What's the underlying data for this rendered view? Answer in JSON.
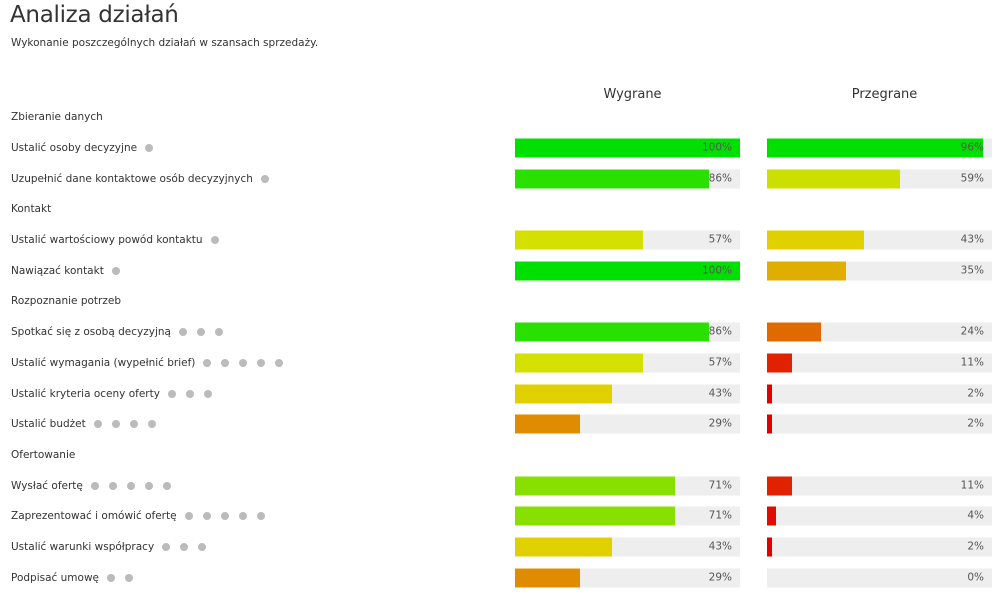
{
  "title": "Analiza działań",
  "subtitle": "Wykonanie poszczególnych działań w szansach sprzedaży.",
  "columns": {
    "won": "Wygrane",
    "lost": "Przegrane"
  },
  "rows": [
    {
      "type": "section",
      "label": "Zbieranie danych"
    },
    {
      "type": "item",
      "label": "Ustalić osoby decyzyjne",
      "dots": 1,
      "won": {
        "value": 100,
        "text": "100%",
        "color": "#00e000"
      },
      "lost": {
        "value": 96,
        "text": "96%",
        "color": "#00e000"
      }
    },
    {
      "type": "item",
      "label": "Uzupełnić dane kontaktowe osób decyzyjnych",
      "dots": 1,
      "won": {
        "value": 86,
        "text": "86%",
        "color": "#2ae000"
      },
      "lost": {
        "value": 59,
        "text": "59%",
        "color": "#cce000"
      }
    },
    {
      "type": "section",
      "label": "Kontakt"
    },
    {
      "type": "item",
      "label": "Ustalić wartościowy powód kontaktu",
      "dots": 1,
      "won": {
        "value": 57,
        "text": "57%",
        "color": "#d4e000"
      },
      "lost": {
        "value": 43,
        "text": "43%",
        "color": "#e0d000"
      }
    },
    {
      "type": "item",
      "label": "Nawiązać kontakt",
      "dots": 1,
      "won": {
        "value": 100,
        "text": "100%",
        "color": "#00e000"
      },
      "lost": {
        "value": 35,
        "text": "35%",
        "color": "#e0ae00"
      }
    },
    {
      "type": "section",
      "label": "Rozpoznanie potrzeb"
    },
    {
      "type": "item",
      "label": "Spotkać się z osobą decyzyjną",
      "dots": 3,
      "won": {
        "value": 86,
        "text": "86%",
        "color": "#2ae000"
      },
      "lost": {
        "value": 24,
        "text": "24%",
        "color": "#e06a00"
      }
    },
    {
      "type": "item",
      "label": "Ustalić wymagania (wypełnić brief)",
      "dots": 5,
      "won": {
        "value": 57,
        "text": "57%",
        "color": "#d4e000"
      },
      "lost": {
        "value": 11,
        "text": "11%",
        "color": "#e02200"
      }
    },
    {
      "type": "item",
      "label": "Ustalić kryteria oceny oferty",
      "dots": 3,
      "won": {
        "value": 43,
        "text": "43%",
        "color": "#e0d000"
      },
      "lost": {
        "value": 2,
        "text": "2%",
        "color": "#e00000"
      }
    },
    {
      "type": "item",
      "label": "Ustalić budżet",
      "dots": 4,
      "won": {
        "value": 29,
        "text": "29%",
        "color": "#e08c00"
      },
      "lost": {
        "value": 2,
        "text": "2%",
        "color": "#e00000"
      }
    },
    {
      "type": "section",
      "label": "Ofertowanie"
    },
    {
      "type": "item",
      "label": "Wysłać ofertę",
      "dots": 5,
      "won": {
        "value": 71,
        "text": "71%",
        "color": "#88e000"
      },
      "lost": {
        "value": 11,
        "text": "11%",
        "color": "#e02200"
      }
    },
    {
      "type": "item",
      "label": "Zaprezentować i omówić ofertę",
      "dots": 5,
      "won": {
        "value": 71,
        "text": "71%",
        "color": "#88e000"
      },
      "lost": {
        "value": 4,
        "text": "4%",
        "color": "#e00c00"
      }
    },
    {
      "type": "item",
      "label": "Ustalić warunki współpracy",
      "dots": 3,
      "won": {
        "value": 43,
        "text": "43%",
        "color": "#e0d000"
      },
      "lost": {
        "value": 2,
        "text": "2%",
        "color": "#e00000"
      }
    },
    {
      "type": "item",
      "label": "Podpisać umowę",
      "dots": 2,
      "won": {
        "value": 29,
        "text": "29%",
        "color": "#e08c00"
      },
      "lost": {
        "value": 0,
        "text": "0%",
        "color": "#e00000"
      }
    }
  ]
}
